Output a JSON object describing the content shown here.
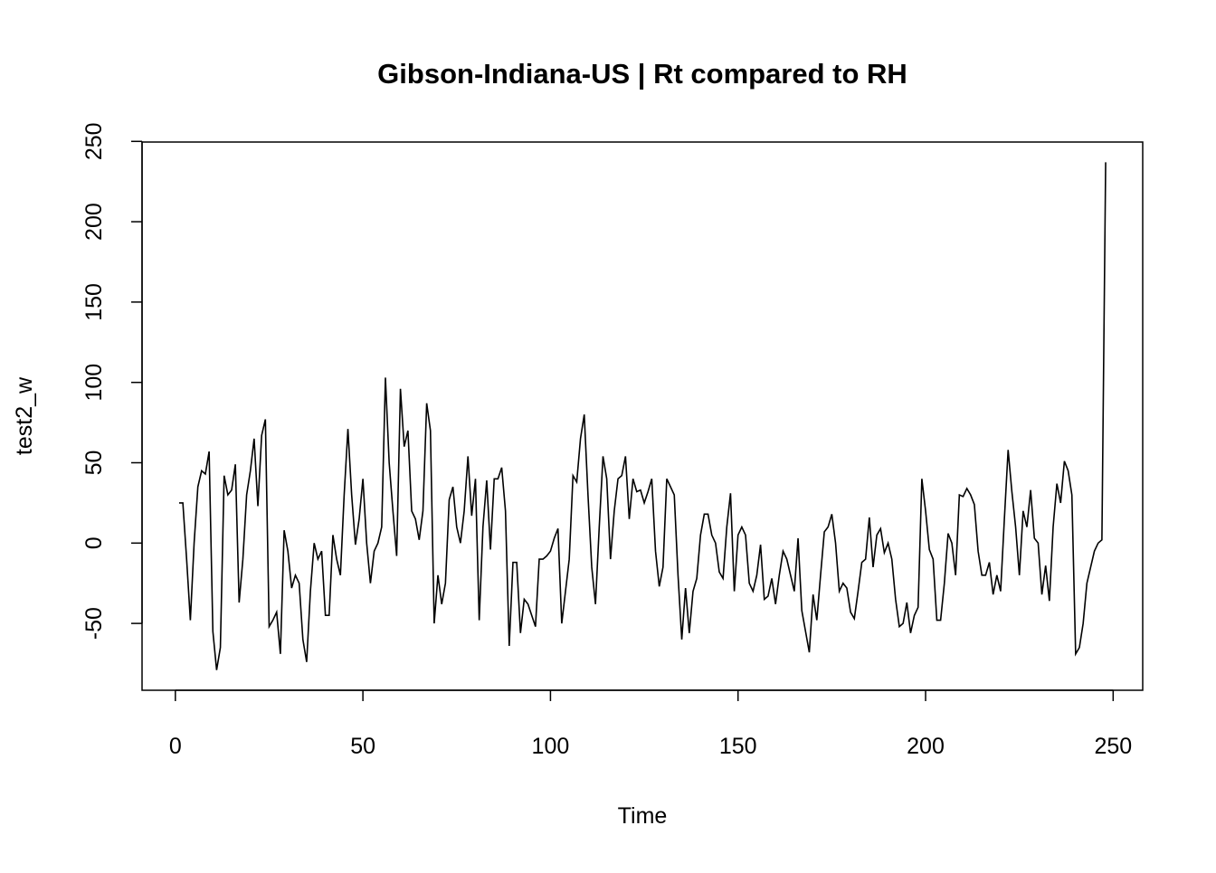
{
  "chart_data": {
    "type": "line",
    "title": "Gibson-Indiana-US | Rt compared to RH",
    "xlabel": "Time",
    "ylabel": "test2_w",
    "color": "#000000",
    "x": [
      1,
      2,
      3,
      4,
      5,
      6,
      7,
      8,
      9,
      10,
      11,
      12,
      13,
      14,
      15,
      16,
      17,
      18,
      19,
      20,
      21,
      22,
      23,
      24,
      25,
      26,
      27,
      28,
      29,
      30,
      31,
      32,
      33,
      34,
      35,
      36,
      37,
      38,
      39,
      40,
      41,
      42,
      43,
      44,
      45,
      46,
      47,
      48,
      49,
      50,
      51,
      52,
      53,
      54,
      55,
      56,
      57,
      58,
      59,
      60,
      61,
      62,
      63,
      64,
      65,
      66,
      67,
      68,
      69,
      70,
      71,
      72,
      73,
      74,
      75,
      76,
      77,
      78,
      79,
      80,
      81,
      82,
      83,
      84,
      85,
      86,
      87,
      88,
      89,
      90,
      91,
      92,
      93,
      94,
      95,
      96,
      97,
      98,
      99,
      100,
      101,
      102,
      103,
      104,
      105,
      106,
      107,
      108,
      109,
      110,
      111,
      112,
      113,
      114,
      115,
      116,
      117,
      118,
      119,
      120,
      121,
      122,
      123,
      124,
      125,
      126,
      127,
      128,
      129,
      130,
      131,
      132,
      133,
      134,
      135,
      136,
      137,
      138,
      139,
      140,
      141,
      142,
      143,
      144,
      145,
      146,
      147,
      148,
      149,
      150,
      151,
      152,
      153,
      154,
      155,
      156,
      157,
      158,
      159,
      160,
      161,
      162,
      163,
      164,
      165,
      166,
      167,
      168,
      169,
      170,
      171,
      172,
      173,
      174,
      175,
      176,
      177,
      178,
      179,
      180,
      181,
      182,
      183,
      184,
      185,
      186,
      187,
      188,
      189,
      190,
      191,
      192,
      193,
      194,
      195,
      196,
      197,
      198,
      199,
      200,
      201,
      202,
      203,
      204,
      205,
      206,
      207,
      208,
      209,
      210,
      211,
      212,
      213,
      214,
      215,
      216,
      217,
      218,
      219,
      220,
      221,
      222,
      223,
      224,
      225,
      226,
      227,
      228,
      229,
      230,
      231,
      232,
      233,
      234,
      235,
      236,
      237,
      238,
      239,
      240,
      241,
      242,
      243,
      244,
      245,
      246,
      247,
      248
    ],
    "values": [
      25,
      25,
      -10,
      -48,
      0,
      35,
      45,
      43,
      57,
      -55,
      -79,
      -65,
      42,
      30,
      33,
      49,
      -37,
      -10,
      30,
      45,
      65,
      23,
      67,
      77,
      -52,
      -48,
      -43,
      -69,
      8,
      -5,
      -28,
      -20,
      -25,
      -60,
      -74,
      -30,
      0,
      -10,
      -5,
      -45,
      -45,
      5,
      -10,
      -20,
      30,
      71,
      30,
      -1,
      15,
      40,
      0,
      -25,
      -5,
      0,
      10,
      103,
      50,
      20,
      -8,
      96,
      60,
      70,
      20,
      15,
      2,
      20,
      87,
      70,
      -50,
      -20,
      -38,
      -25,
      27,
      35,
      10,
      0,
      20,
      54,
      17,
      40,
      -48,
      10,
      39,
      -4,
      40,
      40,
      47,
      20,
      -64,
      -12,
      -12,
      -56,
      -35,
      -38,
      -45,
      -52,
      -10,
      -10,
      -8,
      -5,
      3,
      9,
      -50,
      -30,
      -10,
      42,
      38,
      65,
      80,
      30,
      -15,
      -38,
      10,
      54,
      40,
      -10,
      20,
      40,
      42,
      54,
      15,
      40,
      32,
      33,
      25,
      32,
      40,
      -5,
      -27,
      -15,
      40,
      35,
      30,
      -20,
      -60,
      -28,
      -56,
      -30,
      -22,
      5,
      18,
      18,
      5,
      0,
      -18,
      -22,
      10,
      31,
      -30,
      5,
      10,
      5,
      -25,
      -30,
      -20,
      -1,
      -35,
      -33,
      -22,
      -38,
      -20,
      -5,
      -10,
      -20,
      -30,
      3,
      -42,
      -55,
      -68,
      -32,
      -48,
      -20,
      7,
      10,
      18,
      0,
      -30,
      -25,
      -28,
      -43,
      -47,
      -30,
      -12,
      -10,
      16,
      -15,
      5,
      9,
      -6,
      0,
      -10,
      -35,
      -52,
      -50,
      -37,
      -56,
      -45,
      -40,
      40,
      20,
      -4,
      -10,
      -48,
      -48,
      -25,
      6,
      0,
      -20,
      30,
      29,
      34,
      30,
      24,
      -5,
      -20,
      -20,
      -12,
      -32,
      -20,
      -30,
      15,
      58,
      32,
      10,
      -20,
      20,
      10,
      33,
      3,
      0,
      -32,
      -14,
      -36,
      10,
      37,
      25,
      51,
      45,
      30,
      -69,
      -65,
      -50,
      -25,
      -15,
      -5,
      0,
      2,
      237
    ],
    "xlim": [
      -8.88,
      257.88
    ],
    "ylim": [
      -91.6,
      249.6
    ],
    "xticks": [
      0,
      50,
      100,
      150,
      200,
      250
    ],
    "yticks": [
      -50,
      0,
      50,
      100,
      150,
      200,
      250
    ]
  }
}
